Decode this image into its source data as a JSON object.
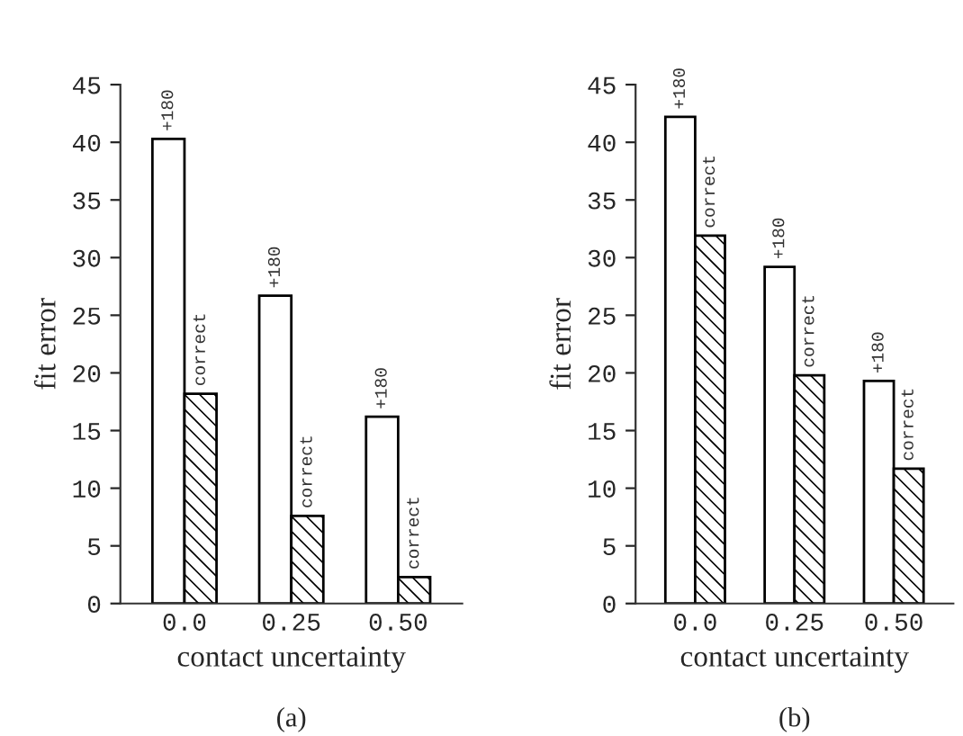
{
  "chart_data": [
    {
      "type": "bar",
      "title": "(a)",
      "xlabel": "contact uncertainty",
      "ylabel": "fit error",
      "categories": [
        "0.0",
        "0.25",
        "0.50"
      ],
      "ylim": [
        0,
        45
      ],
      "yticks": [
        0,
        5,
        10,
        15,
        20,
        25,
        30,
        35,
        40,
        45
      ],
      "grid": false,
      "legend": false,
      "series": [
        {
          "name": "+180",
          "color": "#ffffff",
          "values": [
            40.3,
            26.7,
            16.2
          ]
        },
        {
          "name": "correct",
          "color": "#000000",
          "values": [
            18.2,
            7.6,
            2.3
          ]
        }
      ]
    },
    {
      "type": "bar",
      "title": "(b)",
      "xlabel": "contact uncertainty",
      "ylabel": "fit error",
      "categories": [
        "0.0",
        "0.25",
        "0.50"
      ],
      "ylim": [
        0,
        45
      ],
      "yticks": [
        0,
        5,
        10,
        15,
        20,
        25,
        30,
        35,
        40,
        45
      ],
      "grid": false,
      "legend": false,
      "series": [
        {
          "name": "+180",
          "color": "#ffffff",
          "values": [
            42.2,
            29.2,
            19.3
          ]
        },
        {
          "name": "correct",
          "color": "#000000",
          "values": [
            31.9,
            19.8,
            11.7
          ]
        }
      ]
    }
  ]
}
